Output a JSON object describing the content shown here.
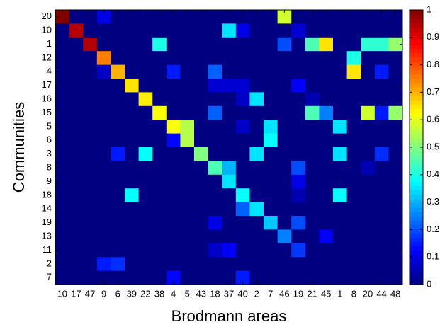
{
  "chart_data": {
    "type": "heatmap",
    "xlabel": "Brodmann areas",
    "ylabel": "Communities",
    "categories": [
      "10",
      "17",
      "47",
      "9",
      "6",
      "39",
      "22",
      "38",
      "4",
      "5",
      "43",
      "18",
      "37",
      "40",
      "2",
      "7",
      "46",
      "19",
      "21",
      "45",
      "1",
      "8",
      "20",
      "44",
      "48"
    ],
    "rows": [
      "20",
      "10",
      "1",
      "12",
      "4",
      "17",
      "16",
      "15",
      "5",
      "6",
      "3",
      "8",
      "9",
      "18",
      "14",
      "19",
      "13",
      "11",
      "2",
      "7"
    ],
    "values": [
      [
        1.0,
        0,
        0,
        0.1,
        0,
        0,
        0,
        0,
        0,
        0,
        0,
        0,
        0,
        0,
        0,
        0,
        0.58,
        0,
        0,
        0,
        0,
        0,
        0,
        0,
        0
      ],
      [
        0,
        0.95,
        0,
        0,
        0,
        0,
        0,
        0,
        0,
        0,
        0,
        0,
        0.35,
        0.1,
        0,
        0,
        0,
        0.08,
        0,
        0,
        0,
        0,
        0,
        0,
        0
      ],
      [
        0,
        0,
        0.95,
        0,
        0,
        0,
        0,
        0.4,
        0,
        0,
        0,
        0,
        0,
        0,
        0,
        0,
        0.2,
        0,
        0.45,
        0.65,
        0,
        0,
        0.42,
        0.42,
        0.52
      ],
      [
        0,
        0,
        0,
        0.75,
        0,
        0,
        0,
        0,
        0,
        0,
        0,
        0,
        0,
        0,
        0,
        0,
        0,
        0,
        0,
        0,
        0,
        0.4,
        0,
        0,
        0
      ],
      [
        0,
        0,
        0,
        0.07,
        0.7,
        0,
        0,
        0,
        0.15,
        0,
        0,
        0.22,
        0,
        0,
        0,
        0,
        0,
        0,
        0,
        0,
        0,
        0.65,
        0,
        0.15,
        0
      ],
      [
        0,
        0,
        0,
        0,
        0,
        0.65,
        0,
        0,
        0,
        0,
        0,
        0.08,
        0.08,
        0.08,
        0,
        0,
        0,
        0.12,
        0,
        0,
        0,
        0,
        0,
        0,
        0
      ],
      [
        0,
        0,
        0,
        0,
        0,
        0,
        0.64,
        0,
        0,
        0,
        0,
        0,
        0,
        0.07,
        0.35,
        0,
        0,
        0,
        0.05,
        0,
        0,
        0,
        0,
        0,
        0
      ],
      [
        0,
        0,
        0,
        0,
        0,
        0,
        0,
        0.62,
        0,
        0,
        0,
        0.22,
        0,
        0,
        0,
        0,
        0,
        0,
        0.45,
        0.25,
        0,
        0,
        0.58,
        0.15,
        0.52
      ],
      [
        0,
        0,
        0,
        0,
        0,
        0,
        0,
        0,
        0.62,
        0.55,
        0,
        0,
        0,
        0.07,
        0,
        0.35,
        0,
        0,
        0,
        0,
        0.35,
        0,
        0,
        0,
        0
      ],
      [
        0,
        0,
        0,
        0,
        0,
        0,
        0,
        0,
        0.13,
        0.55,
        0,
        0,
        0,
        0,
        0,
        0.38,
        0,
        0,
        0,
        0,
        0,
        0,
        0,
        0,
        0
      ],
      [
        0,
        0,
        0,
        0,
        0.15,
        0,
        0.38,
        0,
        0,
        0,
        0.5,
        0,
        0,
        0,
        0.35,
        0,
        0,
        0,
        0,
        0,
        0.35,
        0,
        0,
        0.17,
        0
      ],
      [
        0,
        0,
        0,
        0,
        0,
        0,
        0,
        0,
        0,
        0,
        0,
        0.45,
        0.3,
        0,
        0,
        0,
        0,
        0.2,
        0,
        0,
        0,
        0,
        0.05,
        0,
        0
      ],
      [
        0,
        0,
        0,
        0,
        0,
        0,
        0,
        0,
        0,
        0,
        0,
        0,
        0.35,
        0,
        0,
        0,
        0,
        0.1,
        0,
        0,
        0,
        0,
        0,
        0,
        0
      ],
      [
        0,
        0,
        0,
        0,
        0,
        0.38,
        0,
        0,
        0,
        0,
        0,
        0,
        0,
        0.38,
        0,
        0,
        0,
        0.05,
        0,
        0,
        0.38,
        0,
        0,
        0,
        0
      ],
      [
        0,
        0,
        0,
        0,
        0,
        0,
        0,
        0,
        0,
        0,
        0,
        0,
        0,
        0.22,
        0.35,
        0,
        0,
        0,
        0,
        0,
        0,
        0,
        0,
        0,
        0
      ],
      [
        0,
        0,
        0,
        0,
        0,
        0,
        0,
        0,
        0,
        0,
        0,
        0.1,
        0,
        0,
        0,
        0.32,
        0,
        0.2,
        0,
        0,
        0,
        0,
        0,
        0,
        0
      ],
      [
        0,
        0,
        0,
        0,
        0,
        0,
        0,
        0,
        0,
        0,
        0,
        0,
        0,
        0,
        0,
        0,
        0.25,
        0,
        0,
        0.12,
        0,
        0,
        0,
        0,
        0
      ],
      [
        0,
        0,
        0,
        0,
        0,
        0,
        0,
        0,
        0,
        0,
        0,
        0.07,
        0.12,
        0,
        0,
        0,
        0,
        0.18,
        0,
        0,
        0,
        0,
        0,
        0,
        0
      ],
      [
        0,
        0,
        0,
        0.15,
        0.17,
        0,
        0,
        0,
        0,
        0,
        0,
        0,
        0,
        0,
        0,
        0,
        0,
        0,
        0,
        0,
        0,
        0,
        0,
        0,
        0
      ],
      [
        0,
        0,
        0,
        0,
        0,
        0,
        0,
        0,
        0.13,
        0,
        0,
        0,
        0,
        0.15,
        0,
        0,
        0,
        0,
        0,
        0,
        0,
        0,
        0,
        0,
        0
      ]
    ],
    "colormap": "jet",
    "clim": [
      0,
      1
    ],
    "cticks": [
      0,
      0.1,
      0.2,
      0.3,
      0.4,
      0.5,
      0.6,
      0.7,
      0.8,
      0.9,
      1
    ]
  }
}
